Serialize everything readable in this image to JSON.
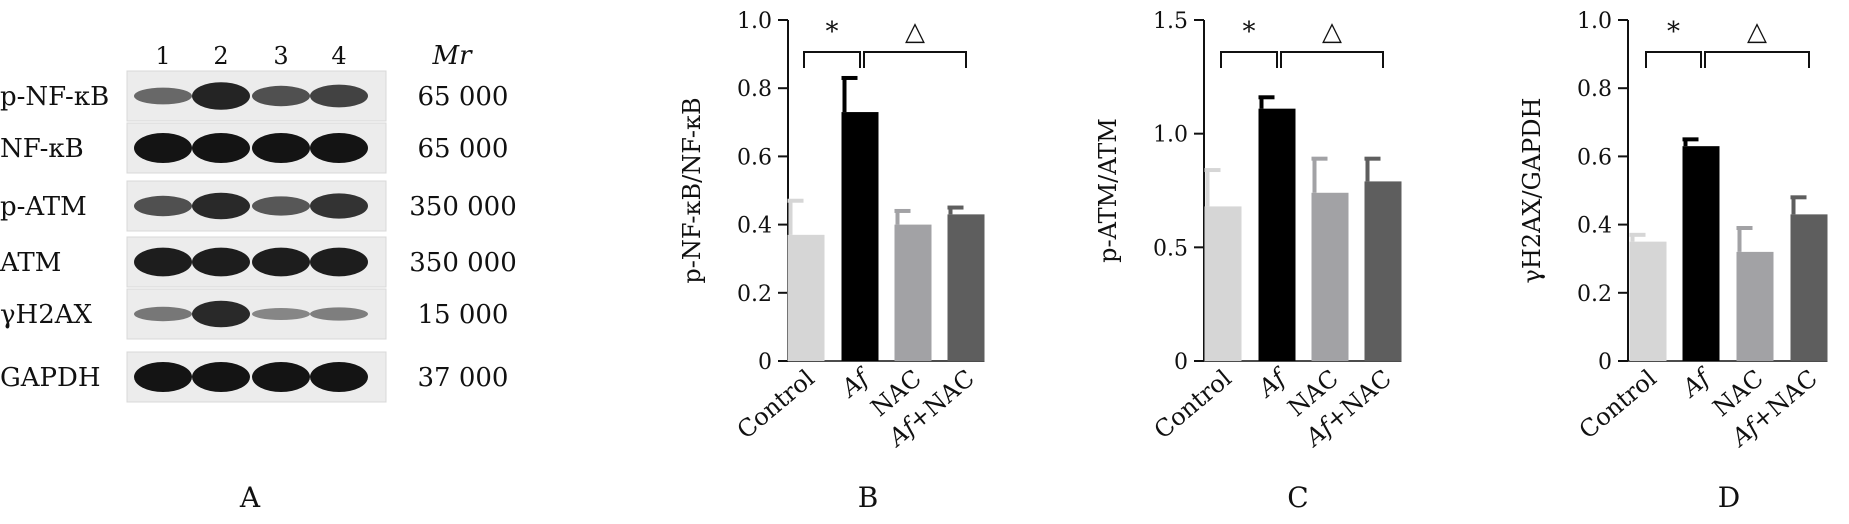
{
  "figure": {
    "panel_labels": [
      "A",
      "B",
      "C",
      "D"
    ]
  },
  "blot": {
    "lane_labels": [
      "1",
      "2",
      "3",
      "4"
    ],
    "mr_header": "Mr",
    "rows": [
      {
        "protein": "p-NF-κB",
        "mr": "65 000",
        "intensities": [
          0.45,
          0.9,
          0.6,
          0.7
        ]
      },
      {
        "protein": "NF-κB",
        "mr": "65 000",
        "intensities": [
          1.0,
          1.0,
          1.0,
          1.0
        ]
      },
      {
        "protein": "p-ATM",
        "mr": "350 000",
        "intensities": [
          0.6,
          0.85,
          0.55,
          0.8
        ]
      },
      {
        "protein": "ATM",
        "mr": "350 000",
        "intensities": [
          0.95,
          0.95,
          0.95,
          0.95
        ]
      },
      {
        "protein": "γH2AX",
        "mr": "15 000",
        "intensities": [
          0.35,
          0.85,
          0.25,
          0.3
        ]
      },
      {
        "protein": "GAPDH",
        "mr": "37 000",
        "intensities": [
          1.0,
          1.0,
          1.0,
          1.0
        ]
      }
    ]
  },
  "colors": {
    "bars": [
      "#d6d6d6",
      "#000000",
      "#a2a2a5",
      "#5e5e5e"
    ],
    "band": "#141414"
  },
  "chart_data": [
    {
      "type": "bar",
      "panel": "B",
      "ylabel": "p-NF-κB/NF-κB",
      "categories": [
        "Control",
        "Af",
        "NAC",
        "Af+NAC"
      ],
      "values": [
        0.37,
        0.73,
        0.4,
        0.43
      ],
      "errors": [
        0.1,
        0.1,
        0.04,
        0.02
      ],
      "ylim": [
        0,
        1.0
      ],
      "yticks": [
        0,
        0.2,
        0.4,
        0.6,
        0.8,
        1.0
      ],
      "ytick_labels": [
        "0",
        "0.2",
        "0.4",
        "0.6",
        "0.8",
        "1.0"
      ],
      "annotations": [
        {
          "symbol": "*",
          "from": 0,
          "to": 1
        },
        {
          "symbol": "△",
          "from": 1,
          "to": 3
        }
      ]
    },
    {
      "type": "bar",
      "panel": "C",
      "ylabel": "p-ATM/ATM",
      "categories": [
        "Control",
        "Af",
        "NAC",
        "Af+NAC"
      ],
      "values": [
        0.68,
        1.11,
        0.74,
        0.79
      ],
      "errors": [
        0.16,
        0.05,
        0.15,
        0.1
      ],
      "ylim": [
        0,
        1.5
      ],
      "yticks": [
        0,
        0.5,
        1.0,
        1.5
      ],
      "ytick_labels": [
        "0",
        "0.5",
        "1.0",
        "1.5"
      ],
      "annotations": [
        {
          "symbol": "*",
          "from": 0,
          "to": 1
        },
        {
          "symbol": "△",
          "from": 1,
          "to": 3
        }
      ]
    },
    {
      "type": "bar",
      "panel": "D",
      "ylabel": "γH2AX/GAPDH",
      "categories": [
        "Control",
        "Af",
        "NAC",
        "Af+NAC"
      ],
      "values": [
        0.35,
        0.63,
        0.32,
        0.43
      ],
      "errors": [
        0.02,
        0.02,
        0.07,
        0.05
      ],
      "ylim": [
        0,
        1.0
      ],
      "yticks": [
        0,
        0.2,
        0.4,
        0.6,
        0.8,
        1.0
      ],
      "ytick_labels": [
        "0",
        "0.2",
        "0.4",
        "0.6",
        "0.8",
        "1.0"
      ],
      "annotations": [
        {
          "symbol": "*",
          "from": 0,
          "to": 1
        },
        {
          "symbol": "△",
          "from": 1,
          "to": 3
        }
      ]
    }
  ]
}
